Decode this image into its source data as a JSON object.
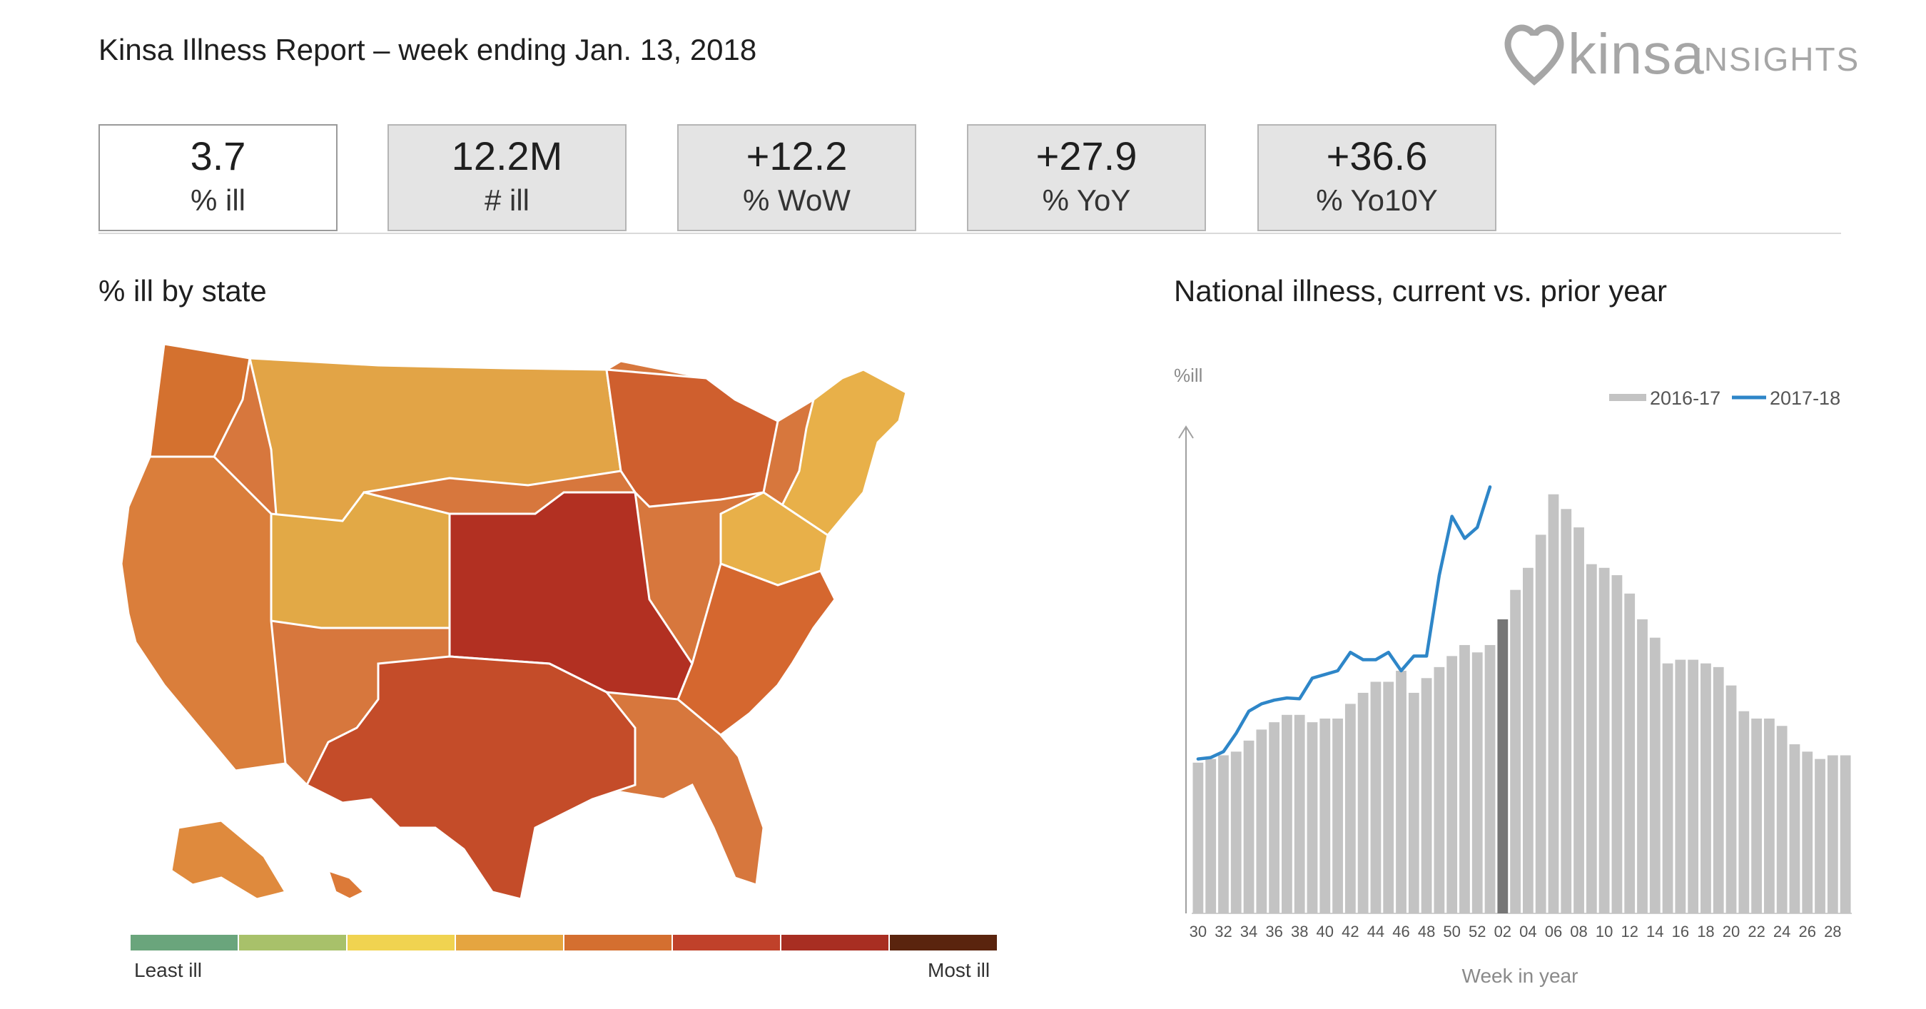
{
  "header": {
    "title": "Kinsa Illness Report – week ending Jan. 13, 2018",
    "logo_word": "kinsa",
    "logo_suffix": "INSIGHTS"
  },
  "stats": [
    {
      "value": "3.7",
      "label": "% ill"
    },
    {
      "value": "12.2M",
      "label": "# ill"
    },
    {
      "value": "+12.2",
      "label": "% WoW"
    },
    {
      "value": "+27.9",
      "label": "% YoY"
    },
    {
      "value": "+36.6",
      "label": "% Yo10Y"
    }
  ],
  "map_section": {
    "title": "% ill by state",
    "legend_least": "Least ill",
    "legend_most": "Most ill",
    "scale_colors": [
      "#6aa57c",
      "#a8c16a",
      "#f0d350",
      "#e5a540",
      "#d46f30",
      "#c0412a",
      "#a82e22",
      "#5a240e"
    ]
  },
  "chart_section": {
    "title": "National illness, current vs. prior year"
  },
  "chart_data": {
    "type": "bar",
    "ylabel": "%ill",
    "xlabel": "Week in year",
    "categories": [
      "30",
      "31",
      "32",
      "33",
      "34",
      "35",
      "36",
      "37",
      "38",
      "39",
      "40",
      "41",
      "42",
      "43",
      "44",
      "45",
      "46",
      "47",
      "48",
      "49",
      "50",
      "51",
      "52",
      "01",
      "02",
      "03",
      "04",
      "05",
      "06",
      "07",
      "08",
      "09",
      "10",
      "11",
      "12",
      "13",
      "14",
      "15",
      "16",
      "17",
      "18",
      "19",
      "20",
      "21",
      "22",
      "23",
      "24",
      "25",
      "26",
      "27",
      "28",
      "29"
    ],
    "tick_labels": [
      "30",
      "32",
      "34",
      "36",
      "38",
      "40",
      "42",
      "44",
      "46",
      "48",
      "50",
      "52",
      "02",
      "04",
      "06",
      "08",
      "10",
      "12",
      "14",
      "16",
      "18",
      "20",
      "22",
      "24",
      "26",
      "28"
    ],
    "highlight_category": "02",
    "legend": [
      "2016-17",
      "2017-18"
    ],
    "colors": {
      "bar": "#c3c3c3",
      "highlight": "#767676",
      "line": "#2e86c8"
    },
    "series": [
      {
        "name": "2016-17",
        "type": "bar",
        "values": [
          2.05,
          2.1,
          2.15,
          2.2,
          2.35,
          2.5,
          2.6,
          2.7,
          2.7,
          2.6,
          2.65,
          2.65,
          2.85,
          3.0,
          3.15,
          3.15,
          3.3,
          3.0,
          3.2,
          3.35,
          3.5,
          3.65,
          3.55,
          3.65,
          4.0,
          4.4,
          4.7,
          5.15,
          5.7,
          5.5,
          5.25,
          4.75,
          4.7,
          4.6,
          4.35,
          4.0,
          3.75,
          3.4,
          3.45,
          3.45,
          3.4,
          3.35,
          3.1,
          2.75,
          2.65,
          2.65,
          2.55,
          2.3,
          2.2,
          2.1,
          2.15,
          2.15
        ]
      },
      {
        "name": "2017-18",
        "type": "line",
        "values": [
          2.1,
          2.12,
          2.2,
          2.45,
          2.75,
          2.85,
          2.9,
          2.93,
          2.92,
          3.2,
          3.25,
          3.3,
          3.55,
          3.45,
          3.45,
          3.55,
          3.3,
          3.5,
          3.5,
          4.6,
          5.4,
          5.1,
          5.25,
          5.8,
          null,
          null,
          null,
          null,
          null,
          null,
          null,
          null,
          null,
          null,
          null,
          null,
          null,
          null,
          null,
          null,
          null,
          null,
          null,
          null,
          null,
          null,
          null,
          null,
          null,
          null,
          null,
          null
        ]
      }
    ],
    "ylim": [
      0,
      6.6
    ]
  }
}
